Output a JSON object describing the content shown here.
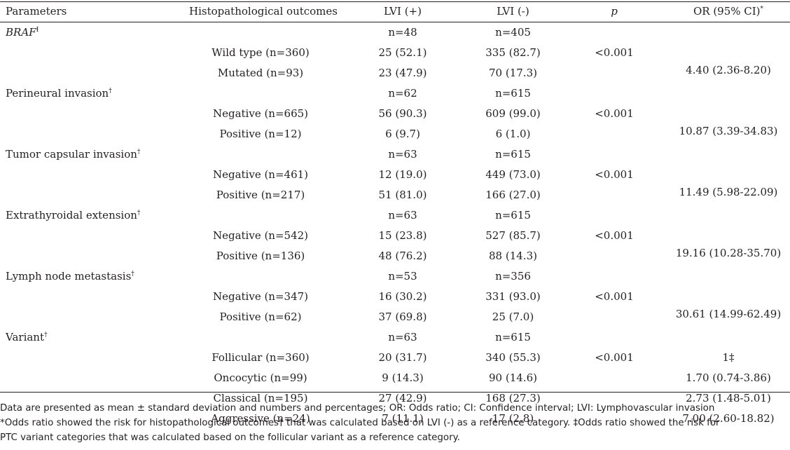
{
  "table": {
    "headers": {
      "parameters": "Parameters",
      "outcomes": "Histopathological outcomes",
      "lvi_pos": "LVI (+)",
      "lvi_neg": "LVI (-)",
      "p": "p",
      "or": "OR (95% CI)",
      "or_mark": "*"
    },
    "groups": [
      {
        "name": "BRAF",
        "italic": true,
        "mark": "Ɨ",
        "n_pos": "n=48",
        "n_neg": "n=405",
        "rows": [
          {
            "outcome": "Wild type (n=360)",
            "pos": "25 (52.1)",
            "neg": "335 (82.7)",
            "p": "<0.001"
          },
          {
            "outcome": "Mutated (n=93)",
            "pos": "23 (47.9)",
            "neg": "70 (17.3)",
            "p": ""
          }
        ],
        "or": "4.40 (2.36-8.20)"
      },
      {
        "name": "Perineural invasion",
        "italic": false,
        "mark": "†",
        "n_pos": "n=62",
        "n_neg": "n=615",
        "rows": [
          {
            "outcome": "Negative (n=665)",
            "pos": "56 (90.3)",
            "neg": "609 (99.0)",
            "p": "<0.001"
          },
          {
            "outcome": "Positive (n=12)",
            "pos": "6 (9.7)",
            "neg": "6 (1.0)",
            "p": ""
          }
        ],
        "or": "10.87 (3.39-34.83)"
      },
      {
        "name": "Tumor capsular invasion",
        "italic": false,
        "mark": "†",
        "n_pos": "n=63",
        "n_neg": "n=615",
        "rows": [
          {
            "outcome": "Negative (n=461)",
            "pos": "12 (19.0)",
            "neg": "449 (73.0)",
            "p": "<0.001"
          },
          {
            "outcome": "Positive (n=217)",
            "pos": "51 (81.0)",
            "neg": "166 (27.0)",
            "p": ""
          }
        ],
        "or": "11.49 (5.98-22.09)"
      },
      {
        "name": "Extrathyroidal extension",
        "italic": false,
        "mark": "†",
        "n_pos": "n=63",
        "n_neg": "n=615",
        "rows": [
          {
            "outcome": "Negative (n=542)",
            "pos": "15 (23.8)",
            "neg": "527 (85.7)",
            "p": "<0.001"
          },
          {
            "outcome": "Positive (n=136)",
            "pos": "48 (76.2)",
            "neg": "88 (14.3)",
            "p": ""
          }
        ],
        "or": "19.16 (10.28-35.70)"
      },
      {
        "name": "Lymph node metastasis",
        "italic": false,
        "mark": "†",
        "n_pos": "n=53",
        "n_neg": "n=356",
        "rows": [
          {
            "outcome": "Negative (n=347)",
            "pos": "16 (30.2)",
            "neg": "331 (93.0)",
            "p": "<0.001"
          },
          {
            "outcome": "Positive (n=62)",
            "pos": "37 (69.8)",
            "neg": "25 (7.0)",
            "p": ""
          }
        ],
        "or": "30.61 (14.99-62.49)"
      },
      {
        "name": "Variant",
        "italic": false,
        "mark": "†",
        "n_pos": "n=63",
        "n_neg": "n=615",
        "rows": [
          {
            "outcome": "Follicular (n=360)",
            "pos": "20 (31.7)",
            "neg": "340 (55.3)",
            "p": "<0.001",
            "or": "1‡"
          },
          {
            "outcome": "Oncocytic (n=99)",
            "pos": "9 (14.3)",
            "neg": "90 (14.6)",
            "p": "",
            "or": "1.70 (0.74-3.86)"
          },
          {
            "outcome": "Classical (n=195)",
            "pos": "27 (42.9)",
            "neg": "168 (27.3)",
            "p": "",
            "or": "2.73 (1.48-5.01)"
          },
          {
            "outcome": "Aggressive (n=24)",
            "pos": "7 (11.1)",
            "neg": "17 (2.8)",
            "p": "",
            "or": "7.00 (2.60-18.82)"
          }
        ],
        "or": ""
      }
    ]
  },
  "footnotes": [
    "Data are presented as mean ± standard deviation and numbers and percentages; OR: Odds ratio; CI: Confidence interval; LVI: Lymphovascular invasion",
    "*Odds ratio showed the risk for histopathological outcomes† that was calculated based on LVI (-) as a reference category. ‡Odds ratio showed the risk for",
    "PTC variant categories that was calculated based on the follicular variant as a reference category."
  ]
}
